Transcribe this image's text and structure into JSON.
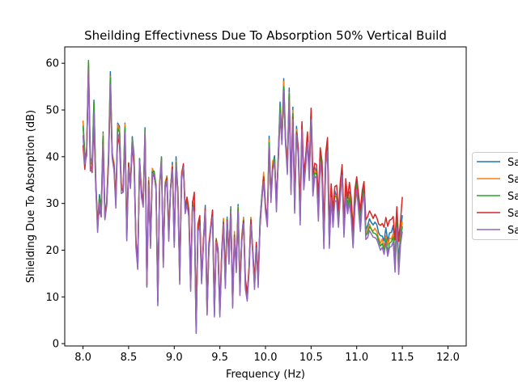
{
  "chart_data": {
    "type": "line",
    "title": "Sheilding Effectivness Due To Absorption 50% Vertical Build",
    "xlabel": "Frequency (Hz)",
    "ylabel": "Shielding Due To Absorption (dB)",
    "xlim": [
      7.8,
      12.2
    ],
    "ylim": [
      -0.5,
      63.5
    ],
    "xticks": [
      "8.0",
      "8.5",
      "9.0",
      "9.5",
      "10.0",
      "10.5",
      "11.0",
      "11.5",
      "12.0"
    ],
    "yticks": [
      "0",
      "10",
      "20",
      "30",
      "40",
      "50",
      "60"
    ],
    "grid": false,
    "legend_placement": "right, outside plot (clipped)",
    "legend_entries": [
      "Sa",
      "Sa",
      "Sa",
      "Sa",
      "Sa"
    ],
    "colors": [
      "#1f77b4",
      "#ff7f0e",
      "#2ca02c",
      "#d62728",
      "#9467bd"
    ],
    "x_start": 8.0,
    "x_step": 0.02,
    "series": [
      {
        "values": [
          47.7,
          40.5,
          40.2,
          60.0,
          40.0,
          38.2,
          52.1,
          35.0,
          25.5,
          31.9,
          28.7,
          45.3,
          27.3,
          30.6,
          40.0,
          58.2,
          40.0,
          38.7,
          30.2,
          47.2,
          46.5,
          33.9,
          32.4,
          47.2,
          23.1,
          38.6,
          33.6,
          44.3,
          40.4,
          22.3,
          16.1,
          39.6,
          32.0,
          30.1,
          46.2,
          12.1,
          34.8,
          21.4,
          37.5,
          36.3,
          34.0,
          9.4,
          33.7,
          39.8,
          17.7,
          33.8,
          35.9,
          23.7,
          33.3,
          38.8,
          21.3,
          40.0,
          32.2,
          13.6,
          36.5,
          38.2,
          28.0,
          31.0,
          27.7,
          12.8,
          30.1,
          29.3,
          2.2,
          25.3,
          26.5,
          13.6,
          21.5,
          29.6,
          6.8,
          20.4,
          24.7,
          28.5,
          6.7,
          22.1,
          19.5,
          6.7,
          19.3,
          26.7,
          12.8,
          27.1,
          18.6,
          29.3,
          8.7,
          23.2,
          16.5,
          29.8,
          11.7,
          22.8,
          27.0,
          12.6,
          9.6,
          16.0,
          27.0,
          20.1,
          12.5,
          21.5,
          13.6,
          26.4,
          31.7,
          36.2,
          29.6,
          25.5,
          44.4,
          31.2,
          38.3,
          40.2,
          29.5,
          39.9,
          51.7,
          44.2,
          56.7,
          43.9,
          37.4,
          54.7,
          33.4,
          50.6,
          29.3,
          46.5,
          41.8,
          26.8,
          46.6,
          34.0,
          39.1,
          44.7,
          36.9,
          50.4,
          33.1,
          37.7,
          36.8,
          28.6,
          40.2,
          37.2,
          22.0,
          39.6,
          43.2,
          22.0,
          32.4,
          26.3,
          32.7,
          31.5,
          26.6,
          33.0,
          37.8,
          24.6,
          33.6,
          29.3,
          32.5,
          28.6,
          22.0,
          31.4,
          34.9,
          30.4,
          27.2,
          31.7,
          33.7,
          24.4,
          25.3,
          26.7,
          25.9,
          25.4,
          26.0,
          25.5,
          23.7,
          23.1,
          23.0,
          22.0,
          24.8,
          21.9,
          23.7,
          23.8,
          25.3,
          18.0,
          27.7,
          17.4,
          23.7,
          27.5
        ]
      },
      {
        "values": [
          47.7,
          39.7,
          40.9,
          60.1,
          39.4,
          38.0,
          51.2,
          34.8,
          25.3,
          30.4,
          28.3,
          44.9,
          27.0,
          29.9,
          40.4,
          57.1,
          41.0,
          38.4,
          30.8,
          46.9,
          45.8,
          34.4,
          32.7,
          47.0,
          23.6,
          38.7,
          34.0,
          43.8,
          39.9,
          21.8,
          16.6,
          39.6,
          32.9,
          30.1,
          45.6,
          12.8,
          35.6,
          20.9,
          37.5,
          36.5,
          33.1,
          9.1,
          34.5,
          39.7,
          17.0,
          34.6,
          35.8,
          23.2,
          33.3,
          38.2,
          22.0,
          39.1,
          32.3,
          13.7,
          36.7,
          38.1,
          28.6,
          31.4,
          27.3,
          12.4,
          30.5,
          29.5,
          2.6,
          25.3,
          26.1,
          13.5,
          21.5,
          28.9,
          6.3,
          20.4,
          24.5,
          28.5,
          6.7,
          22.2,
          19.2,
          6.5,
          19.3,
          26.8,
          12.6,
          26.9,
          18.0,
          28.9,
          8.0,
          24.0,
          15.9,
          29.3,
          10.8,
          23.0,
          26.9,
          11.9,
          9.9,
          16.5,
          27.0,
          19.4,
          12.5,
          20.6,
          13.3,
          25.3,
          31.1,
          36.7,
          29.0,
          26.1,
          43.6,
          31.0,
          39.2,
          39.3,
          29.8,
          40.1,
          50.6,
          44.0,
          56.1,
          43.0,
          38.2,
          53.7,
          32.9,
          49.9,
          29.0,
          45.8,
          41.4,
          26.4,
          46.5,
          33.6,
          39.7,
          44.4,
          35.9,
          49.6,
          32.3,
          37.2,
          36.6,
          27.8,
          40.0,
          36.7,
          21.7,
          38.7,
          42.5,
          21.2,
          31.4,
          26.3,
          31.7,
          31.6,
          25.6,
          32.4,
          37.6,
          23.8,
          32.4,
          28.3,
          32.0,
          27.5,
          20.8,
          30.4,
          33.6,
          29.5,
          25.7,
          30.4,
          32.9,
          23.4,
          24.6,
          25.6,
          24.5,
          24.1,
          24.7,
          24.0,
          22.6,
          21.5,
          22.4,
          20.7,
          23.1,
          21.1,
          22.6,
          22.4,
          23.6,
          16.9,
          26.3,
          16.0,
          22.6,
          26.2
        ]
      },
      {
        "values": [
          46.6,
          40.7,
          40.4,
          60.6,
          38.8,
          38.4,
          51.8,
          34.6,
          24.6,
          31.2,
          28.5,
          44.4,
          26.8,
          30.2,
          39.2,
          56.9,
          40.5,
          38.0,
          29.7,
          46.1,
          45.2,
          33.1,
          33.0,
          46.3,
          22.3,
          38.7,
          33.9,
          43.9,
          39.3,
          21.4,
          16.5,
          39.6,
          32.3,
          30.1,
          45.9,
          12.9,
          34.8,
          21.4,
          36.8,
          36.9,
          34.0,
          8.7,
          33.9,
          40.0,
          17.1,
          33.8,
          35.6,
          22.4,
          33.6,
          37.8,
          21.2,
          38.8,
          32.5,
          13.6,
          35.7,
          38.2,
          28.5,
          30.2,
          27.9,
          11.9,
          29.7,
          28.5,
          2.9,
          24.7,
          26.0,
          13.4,
          21.6,
          28.7,
          6.7,
          20.9,
          24.9,
          27.3,
          6.1,
          22.5,
          19.7,
          6.2,
          18.4,
          26.1,
          12.5,
          26.8,
          17.7,
          28.8,
          8.3,
          23.3,
          15.9,
          29.1,
          11.1,
          22.4,
          26.4,
          12.1,
          9.8,
          15.9,
          26.2,
          19.8,
          12.1,
          21.1,
          12.6,
          25.9,
          31.6,
          35.5,
          28.9,
          25.5,
          43.0,
          31.0,
          38.0,
          39.6,
          29.0,
          40.3,
          50.8,
          43.3,
          55.0,
          44.0,
          37.0,
          53.5,
          32.7,
          49.2,
          28.6,
          45.4,
          41.0,
          26.3,
          47.0,
          33.9,
          38.6,
          44.0,
          35.7,
          49.2,
          32.9,
          36.6,
          36.2,
          27.1,
          40.0,
          36.1,
          21.1,
          39.2,
          42.3,
          21.3,
          32.2,
          25.7,
          31.5,
          31.4,
          25.7,
          32.6,
          37.0,
          23.6,
          32.5,
          28.7,
          31.2,
          27.8,
          21.5,
          30.0,
          34.1,
          29.6,
          25.1,
          30.5,
          33.1,
          23.1,
          23.7,
          25.0,
          24.5,
          23.7,
          23.6,
          23.2,
          22.0,
          20.9,
          21.4,
          20.1,
          22.4,
          19.6,
          21.5,
          21.8,
          22.8,
          16.3,
          25.9,
          15.8,
          22.2,
          25.1
        ]
      },
      {
        "values": [
          42.5,
          37.3,
          41.7,
          58.6,
          38.4,
          36.6,
          47.3,
          33.3,
          26.2,
          28.6,
          27.1,
          42.6,
          28.1,
          29.7,
          39.5,
          54.1,
          40.3,
          37.7,
          31.3,
          44.4,
          42.5,
          33.4,
          32.6,
          44.6,
          24.4,
          38.5,
          33.6,
          42.4,
          37.8,
          22.5,
          16.4,
          38.6,
          33.1,
          29.9,
          44.4,
          12.5,
          34.8,
          21.9,
          36.6,
          35.6,
          33.7,
          9.5,
          34.0,
          38.5,
          18.5,
          33.2,
          35.3,
          23.7,
          33.2,
          37.8,
          22.4,
          37.7,
          32.9,
          14.5,
          35.5,
          38.5,
          29.3,
          31.3,
          28.8,
          14.0,
          30.0,
          32.4,
          4.1,
          25.6,
          27.4,
          14.3,
          22.3,
          28.9,
          7.8,
          21.5,
          25.0,
          28.6,
          7.9,
          22.2,
          20.3,
          7.8,
          19.4,
          25.9,
          14.7,
          26.4,
          19.5,
          27.9,
          10.3,
          23.0,
          16.6,
          28.3,
          12.5,
          22.2,
          26.2,
          13.8,
          10.8,
          16.3,
          26.5,
          20.2,
          13.4,
          21.7,
          14.3,
          24.9,
          30.5,
          35.7,
          29.5,
          26.4,
          41.3,
          31.5,
          37.9,
          38.6,
          30.8,
          38.7,
          48.7,
          43.5,
          53.4,
          42.9,
          38.6,
          51.9,
          35.3,
          48.4,
          31.2,
          45.1,
          41.6,
          29.3,
          47.5,
          36.2,
          40.0,
          45.3,
          36.8,
          50.2,
          36.1,
          38.6,
          38.3,
          31.4,
          41.9,
          39.0,
          24.8,
          40.7,
          44.1,
          25.2,
          34.2,
          28.5,
          33.6,
          33.9,
          28.4,
          34.6,
          38.3,
          26.0,
          35.3,
          31.1,
          34.5,
          31.0,
          24.4,
          33.0,
          35.7,
          31.9,
          28.5,
          32.7,
          34.7,
          26.5,
          27.2,
          28.4,
          27.7,
          26.8,
          27.7,
          27.0,
          25.6,
          25.3,
          25.7,
          24.9,
          27.0,
          25.1,
          26.4,
          26.6,
          27.2,
          22.2,
          29.3,
          21.9,
          26.3,
          31.4
        ]
      },
      {
        "values": [
          44.6,
          38.4,
          40.2,
          58.8,
          36.9,
          37.2,
          49.5,
          33.6,
          23.8,
          30.2,
          27.2,
          42.6,
          26.5,
          29.5,
          38.3,
          55.4,
          39.7,
          37.0,
          29.0,
          45.0,
          44.0,
          32.1,
          32.4,
          45.1,
          22.0,
          37.7,
          33.2,
          43.3,
          38.9,
          20.6,
          15.9,
          39.1,
          31.4,
          29.2,
          45.2,
          12.3,
          34.0,
          20.4,
          36.4,
          36.0,
          33.0,
          8.1,
          33.4,
          39.2,
          16.3,
          33.2,
          34.9,
          21.9,
          33.1,
          37.3,
          20.6,
          38.4,
          31.6,
          12.7,
          35.0,
          37.7,
          27.8,
          29.7,
          27.1,
          11.2,
          29.2,
          28.1,
          2.3,
          24.0,
          25.2,
          12.8,
          21.0,
          28.4,
          6.1,
          20.1,
          24.3,
          27.0,
          5.7,
          21.7,
          19.0,
          5.7,
          17.9,
          25.5,
          11.8,
          26.1,
          17.0,
          28.3,
          7.6,
          22.8,
          15.2,
          28.3,
          10.3,
          21.8,
          25.7,
          11.6,
          9.1,
          15.3,
          25.5,
          19.3,
          11.6,
          20.5,
          12.0,
          25.4,
          30.9,
          34.7,
          28.3,
          25.0,
          42.1,
          30.2,
          37.2,
          38.9,
          28.2,
          39.3,
          49.3,
          42.6,
          54.0,
          42.6,
          36.2,
          52.0,
          31.9,
          48.0,
          27.9,
          44.6,
          40.0,
          25.4,
          45.7,
          32.9,
          37.7,
          43.1,
          34.9,
          47.9,
          31.6,
          35.8,
          35.4,
          26.2,
          38.9,
          35.3,
          20.3,
          38.1,
          41.2,
          20.4,
          31.2,
          24.9,
          30.5,
          30.5,
          24.9,
          31.4,
          36.0,
          22.8,
          31.3,
          27.8,
          30.1,
          26.9,
          20.5,
          29.0,
          33.0,
          28.5,
          24.0,
          29.6,
          32.0,
          22.3,
          22.7,
          24.2,
          23.5,
          22.8,
          22.7,
          22.3,
          21.2,
          20.0,
          20.6,
          19.1,
          21.6,
          18.7,
          20.6,
          20.8,
          21.8,
          15.3,
          24.8,
          14.8,
          21.2,
          24.0
        ]
      }
    ]
  }
}
